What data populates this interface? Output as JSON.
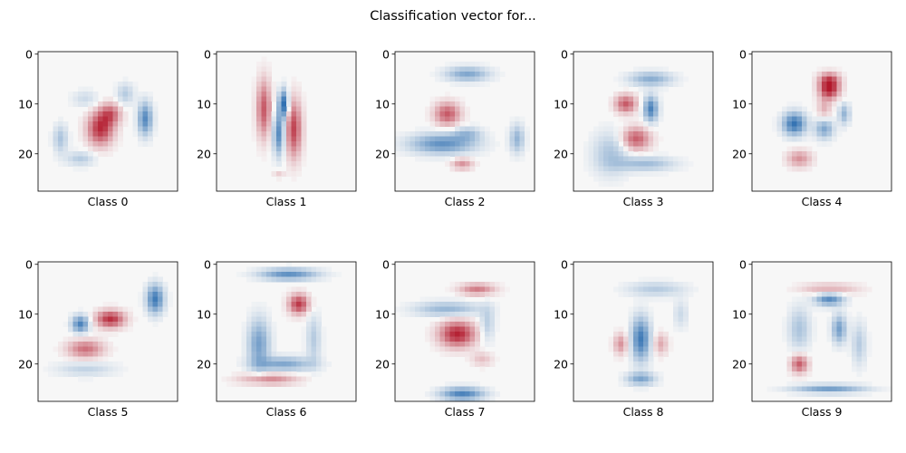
{
  "figure": {
    "suptitle": "Classification vector for..."
  },
  "chart_data": {
    "type": "heatmap",
    "grid": [
      28,
      28
    ],
    "colormap": "RdBu",
    "colormap_low": "#b2182b",
    "colormap_mid": "#f7f7f7",
    "colormap_high": "#2166ac",
    "value_range": [
      -1,
      1
    ],
    "ytick_values": [
      0,
      10,
      20
    ],
    "ytick_labels": [
      "0",
      "10",
      "20"
    ],
    "xticks": "none",
    "panels": [
      {
        "label": "Class 0",
        "blobs": [
          {
            "r": 15,
            "c": 12,
            "v": -0.9,
            "sr": 2.3,
            "sc": 1.8
          },
          {
            "r": 12,
            "c": 14,
            "v": -0.6,
            "sr": 1.5,
            "sc": 1.5
          },
          {
            "r": 13,
            "c": 21,
            "v": 0.75,
            "sr": 2.3,
            "sc": 1.0
          },
          {
            "r": 8,
            "c": 17,
            "v": 0.3,
            "sr": 1.5,
            "sc": 1.2
          },
          {
            "r": 17,
            "c": 4,
            "v": 0.35,
            "sr": 2.0,
            "sc": 1.0
          },
          {
            "r": 21,
            "c": 8,
            "v": 0.3,
            "sr": 1.0,
            "sc": 2.0
          },
          {
            "r": 9,
            "c": 9,
            "v": 0.2,
            "sr": 1.2,
            "sc": 1.8
          }
        ]
      },
      {
        "label": "Class 1",
        "blobs": [
          {
            "r": 11,
            "c": 9,
            "v": -0.7,
            "sr": 4.0,
            "sc": 1.0
          },
          {
            "r": 15,
            "c": 15,
            "v": -0.8,
            "sr": 4.0,
            "sc": 1.1
          },
          {
            "r": 10,
            "c": 13,
            "v": 0.95,
            "sr": 2.0,
            "sc": 0.7
          },
          {
            "r": 16,
            "c": 12,
            "v": 0.75,
            "sr": 3.0,
            "sc": 0.8
          },
          {
            "r": 24,
            "c": 12,
            "v": -0.2,
            "sr": 0.6,
            "sc": 0.8
          }
        ]
      },
      {
        "label": "Class 2",
        "blobs": [
          {
            "r": 4,
            "c": 14,
            "v": 0.55,
            "sr": 1.0,
            "sc": 3.0
          },
          {
            "r": 12,
            "c": 10,
            "v": -0.7,
            "sr": 1.6,
            "sc": 1.8
          },
          {
            "r": 18,
            "c": 9,
            "v": 0.7,
            "sr": 1.4,
            "sc": 4.5
          },
          {
            "r": 17,
            "c": 24,
            "v": 0.45,
            "sr": 2.0,
            "sc": 1.0
          },
          {
            "r": 22,
            "c": 13,
            "v": -0.45,
            "sr": 0.8,
            "sc": 1.5
          },
          {
            "r": 16,
            "c": 14,
            "v": 0.35,
            "sr": 1.0,
            "sc": 2.0
          }
        ]
      },
      {
        "label": "Class 3",
        "blobs": [
          {
            "r": 5,
            "c": 15,
            "v": 0.5,
            "sr": 1.0,
            "sc": 3.0
          },
          {
            "r": 10,
            "c": 10,
            "v": -0.7,
            "sr": 1.3,
            "sc": 1.5
          },
          {
            "r": 11,
            "c": 15,
            "v": 0.8,
            "sr": 1.8,
            "sc": 1.0
          },
          {
            "r": 17,
            "c": 12,
            "v": -0.7,
            "sr": 1.6,
            "sc": 2.0
          },
          {
            "r": 20,
            "c": 7,
            "v": 0.35,
            "sr": 3.0,
            "sc": 2.5
          },
          {
            "r": 22,
            "c": 14,
            "v": 0.4,
            "sr": 1.0,
            "sc": 4.0
          }
        ]
      },
      {
        "label": "Class 4",
        "blobs": [
          {
            "r": 7,
            "c": 15,
            "v": -1.0,
            "sr": 1.4,
            "sc": 1.4
          },
          {
            "r": 5,
            "c": 15,
            "v": -0.5,
            "sr": 1.0,
            "sc": 1.5
          },
          {
            "r": 14,
            "c": 8,
            "v": 0.9,
            "sr": 1.6,
            "sc": 1.6
          },
          {
            "r": 15,
            "c": 14,
            "v": 0.55,
            "sr": 1.4,
            "sc": 1.3
          },
          {
            "r": 12,
            "c": 18,
            "v": 0.45,
            "sr": 1.5,
            "sc": 0.8
          },
          {
            "r": 21,
            "c": 9,
            "v": -0.45,
            "sr": 1.2,
            "sc": 1.7
          },
          {
            "r": 11,
            "c": 14,
            "v": -0.3,
            "sr": 1.5,
            "sc": 1.0
          }
        ]
      },
      {
        "label": "Class 5",
        "blobs": [
          {
            "r": 7,
            "c": 23,
            "v": 0.85,
            "sr": 2.0,
            "sc": 1.2
          },
          {
            "r": 12,
            "c": 8,
            "v": 0.8,
            "sr": 1.2,
            "sc": 1.2
          },
          {
            "r": 11,
            "c": 14,
            "v": -0.9,
            "sr": 1.2,
            "sc": 2.0
          },
          {
            "r": 17,
            "c": 9,
            "v": -0.6,
            "sr": 1.3,
            "sc": 2.5
          },
          {
            "r": 21,
            "c": 9,
            "v": 0.25,
            "sr": 1.0,
            "sc": 4.0
          }
        ]
      },
      {
        "label": "Class 6",
        "blobs": [
          {
            "r": 2,
            "c": 14,
            "v": 0.7,
            "sr": 0.8,
            "sc": 4.0
          },
          {
            "r": 8,
            "c": 16,
            "v": -0.85,
            "sr": 1.4,
            "sc": 1.4
          },
          {
            "r": 16,
            "c": 8,
            "v": 0.6,
            "sr": 3.5,
            "sc": 1.5
          },
          {
            "r": 20,
            "c": 13,
            "v": 0.55,
            "sr": 1.0,
            "sc": 4.0
          },
          {
            "r": 23,
            "c": 10,
            "v": -0.5,
            "sr": 0.8,
            "sc": 4.0
          },
          {
            "r": 15,
            "c": 19,
            "v": 0.3,
            "sr": 3.5,
            "sc": 1.0
          }
        ]
      },
      {
        "label": "Class 7",
        "blobs": [
          {
            "r": 5,
            "c": 16,
            "v": -0.55,
            "sr": 0.8,
            "sc": 2.5
          },
          {
            "r": 9,
            "c": 10,
            "v": 0.45,
            "sr": 1.0,
            "sc": 4.5
          },
          {
            "r": 14,
            "c": 12,
            "v": -0.95,
            "sr": 1.8,
            "sc": 2.5
          },
          {
            "r": 26,
            "c": 13,
            "v": 0.8,
            "sr": 0.9,
            "sc": 3.0
          },
          {
            "r": 19,
            "c": 17,
            "v": -0.25,
            "sr": 1.0,
            "sc": 1.5
          },
          {
            "r": 12,
            "c": 18,
            "v": 0.3,
            "sr": 2.5,
            "sc": 1.0
          }
        ]
      },
      {
        "label": "Class 8",
        "blobs": [
          {
            "r": 15,
            "c": 13,
            "v": 0.85,
            "sr": 3.0,
            "sc": 1.3
          },
          {
            "r": 23,
            "c": 13,
            "v": 0.55,
            "sr": 0.9,
            "sc": 2.0
          },
          {
            "r": 5,
            "c": 16,
            "v": 0.3,
            "sr": 1.0,
            "sc": 4.0
          },
          {
            "r": 16,
            "c": 9,
            "v": -0.45,
            "sr": 1.5,
            "sc": 1.0
          },
          {
            "r": 16,
            "c": 17,
            "v": -0.35,
            "sr": 1.5,
            "sc": 1.0
          },
          {
            "r": 10,
            "c": 21,
            "v": 0.2,
            "sr": 2.0,
            "sc": 1.0
          }
        ]
      },
      {
        "label": "Class 9",
        "blobs": [
          {
            "r": 5,
            "c": 15,
            "v": -0.35,
            "sr": 0.8,
            "sc": 4.0
          },
          {
            "r": 7,
            "c": 15,
            "v": 0.75,
            "sr": 0.9,
            "sc": 2.0
          },
          {
            "r": 13,
            "c": 17,
            "v": 0.6,
            "sr": 2.0,
            "sc": 1.0
          },
          {
            "r": 13,
            "c": 9,
            "v": 0.35,
            "sr": 3.0,
            "sc": 1.5
          },
          {
            "r": 20,
            "c": 9,
            "v": -0.7,
            "sr": 1.3,
            "sc": 1.2
          },
          {
            "r": 25,
            "c": 15,
            "v": 0.6,
            "sr": 0.6,
            "sc": 5.0
          },
          {
            "r": 16,
            "c": 21,
            "v": 0.3,
            "sr": 3.0,
            "sc": 1.0
          }
        ]
      }
    ]
  }
}
